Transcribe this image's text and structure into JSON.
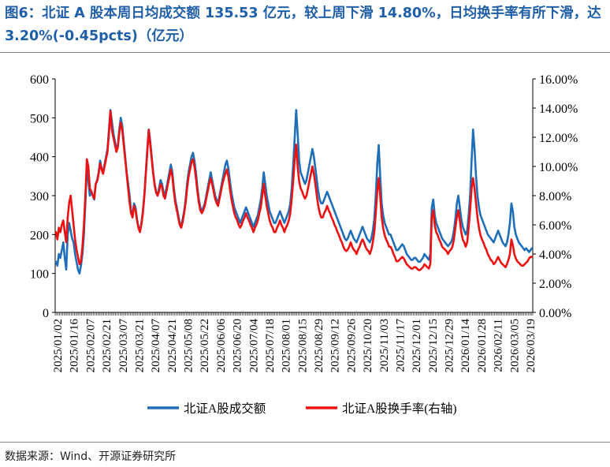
{
  "title": "图6：北证 A 股本周日均成交额 135.53 亿元，较上周下滑 14.80%，日均换手率有所下滑，达 3.20%(-0.45pcts)（亿元）",
  "source": "数据来源：Wind、开源证券研究所",
  "colors": {
    "series1": "#1f6fb8",
    "series2": "#ee1111",
    "title": "#1f5fa8"
  },
  "chart_data": {
    "type": "line",
    "x_ticks": [
      "2025/01/02",
      "2025/01/16",
      "2025/02/07",
      "2025/02/21",
      "2025/03/07",
      "2025/03/21",
      "2025/04/07",
      "2025/04/21",
      "2025/05/08",
      "2025/05/22",
      "2025/06/06",
      "2025/06/20",
      "2025/07/04",
      "2025/07/18",
      "2025/08/01",
      "2025/08/15",
      "2025/08/29",
      "2025/09/12",
      "2025/09/26",
      "2025/10/20",
      "2025/11/03",
      "2025/11/17",
      "2025/12/01",
      "2025/12/15",
      "2025/12/29",
      "2026/01/14",
      "2026/01/28",
      "2026/02/11",
      "2026/03/05",
      "2026/03/19"
    ],
    "y_left": {
      "ticks": [
        "0",
        "100",
        "200",
        "300",
        "400",
        "500",
        "600"
      ],
      "min": 0,
      "max": 600
    },
    "y_right": {
      "ticks": [
        "0.00%",
        "2.00%",
        "4.00%",
        "6.00%",
        "8.00%",
        "10.00%",
        "12.00%",
        "14.00%",
        "16.00%"
      ],
      "min": 0,
      "max": 16
    },
    "legend_position": "bottom",
    "series": [
      {
        "name": "北证A股成交额",
        "axis": "left",
        "values": [
          130,
          120,
          150,
          140,
          160,
          180,
          140,
          110,
          200,
          230,
          210,
          190,
          180,
          150,
          130,
          110,
          100,
          120,
          150,
          200,
          280,
          370,
          340,
          300,
          310,
          300,
          290,
          330,
          340,
          360,
          390,
          370,
          360,
          380,
          400,
          420,
          470,
          520,
          490,
          460,
          440,
          420,
          430,
          470,
          500,
          480,
          440,
          400,
          360,
          330,
          300,
          260,
          250,
          280,
          270,
          240,
          220,
          210,
          230,
          260,
          300,
          360,
          420,
          470,
          440,
          400,
          360,
          330,
          310,
          300,
          320,
          340,
          330,
          310,
          300,
          320,
          340,
          360,
          380,
          360,
          320,
          290,
          270,
          250,
          230,
          220,
          240,
          260,
          290,
          330,
          360,
          380,
          400,
          410,
          390,
          360,
          320,
          290,
          270,
          260,
          270,
          280,
          300,
          320,
          340,
          360,
          340,
          320,
          300,
          290,
          280,
          300,
          320,
          340,
          360,
          380,
          390,
          370,
          340,
          310,
          290,
          270,
          260,
          250,
          240,
          230,
          240,
          250,
          260,
          270,
          260,
          250,
          240,
          230,
          220,
          230,
          240,
          250,
          270,
          290,
          320,
          360,
          330,
          300,
          280,
          260,
          250,
          240,
          230,
          230,
          240,
          250,
          260,
          250,
          240,
          230,
          240,
          250,
          260,
          280,
          320,
          380,
          450,
          520,
          460,
          390,
          360,
          350,
          340,
          330,
          340,
          360,
          380,
          400,
          420,
          400,
          370,
          340,
          310,
          290,
          280,
          280,
          290,
          300,
          310,
          300,
          290,
          280,
          270,
          260,
          250,
          240,
          230,
          220,
          210,
          200,
          190,
          185,
          190,
          200,
          210,
          200,
          190,
          185,
          180,
          190,
          200,
          210,
          220,
          210,
          200,
          190,
          185,
          180,
          190,
          210,
          240,
          300,
          380,
          430,
          350,
          280,
          250,
          230,
          220,
          210,
          200,
          200,
          190,
          180,
          170,
          160,
          160,
          165,
          170,
          175,
          170,
          160,
          150,
          145,
          140,
          135,
          135,
          140,
          140,
          135,
          130,
          130,
          135,
          140,
          150,
          145,
          140,
          135,
          150,
          270,
          290,
          250,
          230,
          220,
          210,
          200,
          190,
          185,
          180,
          175,
          170,
          175,
          180,
          190,
          210,
          240,
          280,
          300,
          270,
          240,
          220,
          210,
          200,
          210,
          250,
          300,
          390,
          470,
          420,
          350,
          300,
          270,
          250,
          240,
          230,
          220,
          210,
          200,
          195,
          190,
          185,
          180,
          190,
          200,
          210,
          200,
          190,
          180,
          175,
          170,
          180,
          200,
          230,
          280,
          260,
          220,
          200,
          190,
          180,
          175,
          170,
          165,
          160,
          165,
          160,
          155,
          160,
          165
        ]
      },
      {
        "name": "北证A股换手率(右轴)",
        "axis": "right",
        "unit": "%",
        "values": [
          5.5,
          5.0,
          5.8,
          5.5,
          6.0,
          6.3,
          5.5,
          4.8,
          6.5,
          7.5,
          8.0,
          7.0,
          6.0,
          5.0,
          4.3,
          3.8,
          3.3,
          3.5,
          4.5,
          6.0,
          8.0,
          10.5,
          10.0,
          8.5,
          8.3,
          8.0,
          7.8,
          8.8,
          9.0,
          9.5,
          10.2,
          9.8,
          9.5,
          10.0,
          10.5,
          11.0,
          12.3,
          13.8,
          12.5,
          12.0,
          11.5,
          11.0,
          11.3,
          12.3,
          13.0,
          12.5,
          11.5,
          10.5,
          9.5,
          8.5,
          7.5,
          6.8,
          6.5,
          7.3,
          7.0,
          6.3,
          5.8,
          5.5,
          6.0,
          6.8,
          8.0,
          9.5,
          11.0,
          12.5,
          11.5,
          10.5,
          9.5,
          8.7,
          8.2,
          8.0,
          8.3,
          8.8,
          8.6,
          8.0,
          7.8,
          8.3,
          8.8,
          9.3,
          9.8,
          9.3,
          8.3,
          7.5,
          7.0,
          6.5,
          6.0,
          5.8,
          6.2,
          6.8,
          7.5,
          8.5,
          9.3,
          9.8,
          10.3,
          10.5,
          10.0,
          9.2,
          8.3,
          7.5,
          7.0,
          6.8,
          7.0,
          7.3,
          7.8,
          8.3,
          8.8,
          9.2,
          8.8,
          8.3,
          7.8,
          7.5,
          7.3,
          7.8,
          8.3,
          8.8,
          9.2,
          9.5,
          9.8,
          9.3,
          8.5,
          7.8,
          7.3,
          6.8,
          6.5,
          6.3,
          6.0,
          5.8,
          6.0,
          6.3,
          6.5,
          6.8,
          6.5,
          6.3,
          6.0,
          5.8,
          5.5,
          5.8,
          6.0,
          6.3,
          6.8,
          7.2,
          8.0,
          8.8,
          8.0,
          7.3,
          6.8,
          6.3,
          6.0,
          5.8,
          5.5,
          5.5,
          5.8,
          6.0,
          6.3,
          6.0,
          5.8,
          5.5,
          5.8,
          6.0,
          6.3,
          6.8,
          7.8,
          9.0,
          10.5,
          11.5,
          10.0,
          9.0,
          8.5,
          8.3,
          8.0,
          7.8,
          8.0,
          8.5,
          9.0,
          9.5,
          10.0,
          9.5,
          8.8,
          8.0,
          7.3,
          6.8,
          6.5,
          6.5,
          6.8,
          7.0,
          7.3,
          7.0,
          6.8,
          6.5,
          6.3,
          6.0,
          5.8,
          5.5,
          5.3,
          5.0,
          4.8,
          4.5,
          4.3,
          4.2,
          4.3,
          4.5,
          4.8,
          4.5,
          4.3,
          4.2,
          4.0,
          4.3,
          4.5,
          4.8,
          5.0,
          4.8,
          4.5,
          4.3,
          4.2,
          4.0,
          4.3,
          4.8,
          5.5,
          6.8,
          8.3,
          9.2,
          8.0,
          6.5,
          5.8,
          5.3,
          5.0,
          4.8,
          4.5,
          4.5,
          4.3,
          4.0,
          3.8,
          3.5,
          3.5,
          3.6,
          3.7,
          3.8,
          3.7,
          3.5,
          3.3,
          3.2,
          3.1,
          3.0,
          3.0,
          3.1,
          3.1,
          3.0,
          2.9,
          2.9,
          3.0,
          3.1,
          3.3,
          3.2,
          3.1,
          3.0,
          3.3,
          6.5,
          7.0,
          6.0,
          5.5,
          5.3,
          5.0,
          4.8,
          4.5,
          4.4,
          4.3,
          4.2,
          4.0,
          4.2,
          4.3,
          4.5,
          5.0,
          5.8,
          6.5,
          7.0,
          6.3,
          5.5,
          5.0,
          4.8,
          4.5,
          4.8,
          5.8,
          7.0,
          8.5,
          9.2,
          8.5,
          7.5,
          6.5,
          5.8,
          5.3,
          5.0,
          4.8,
          4.5,
          4.3,
          4.0,
          3.8,
          3.6,
          3.5,
          3.3,
          3.4,
          3.6,
          3.8,
          3.6,
          3.4,
          3.3,
          3.2,
          3.1,
          3.3,
          3.6,
          4.0,
          5.0,
          4.6,
          4.0,
          3.7,
          3.5,
          3.4,
          3.3,
          3.2,
          3.2,
          3.3,
          3.4,
          3.5,
          3.7,
          3.8,
          3.8
        ]
      }
    ]
  }
}
